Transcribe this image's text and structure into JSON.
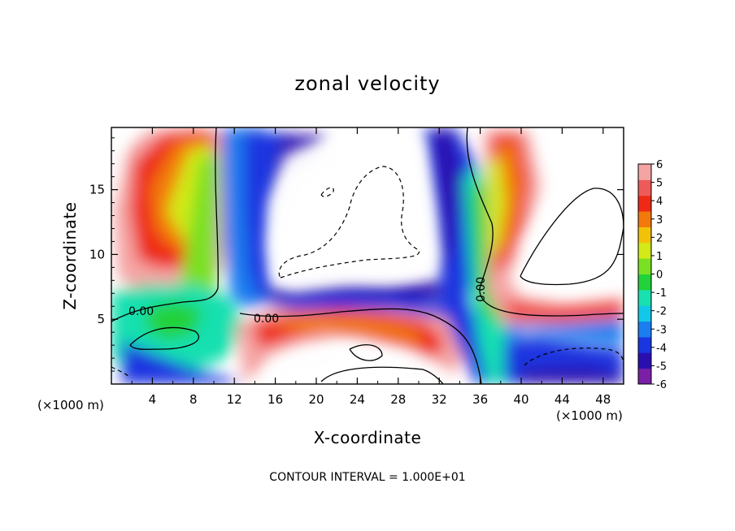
{
  "chart_data": {
    "type": "heatmap",
    "title": "zonal velocity",
    "xlabel": "X-coordinate",
    "ylabel": "Z-coordinate",
    "x_unit_note": "(×1000 m)",
    "x_ticks": [
      4,
      8,
      12,
      16,
      20,
      24,
      28,
      32,
      36,
      40,
      44,
      48
    ],
    "y_ticks": [
      5,
      10,
      15
    ],
    "xlim": [
      0,
      50
    ],
    "ylim": [
      0,
      19.8
    ],
    "colorbar": {
      "ticks": [
        6,
        5,
        4,
        3,
        2,
        1,
        0,
        -1,
        -2,
        -3,
        -4,
        -5,
        -6
      ],
      "range": [
        -6,
        6
      ],
      "colors": [
        "#7a1fa6",
        "#2a0fb0",
        "#1a36e0",
        "#1a7ef0",
        "#12c8e8",
        "#18e0b0",
        "#22d23a",
        "#7ae022",
        "#d2ea18",
        "#f2c20a",
        "#f27a0a",
        "#ee2a16",
        "#ee5a5a",
        "#f5a4a4"
      ]
    },
    "contour_label": "0.00",
    "footer": "CONTOUR INTERVAL = 1.000E+01"
  }
}
